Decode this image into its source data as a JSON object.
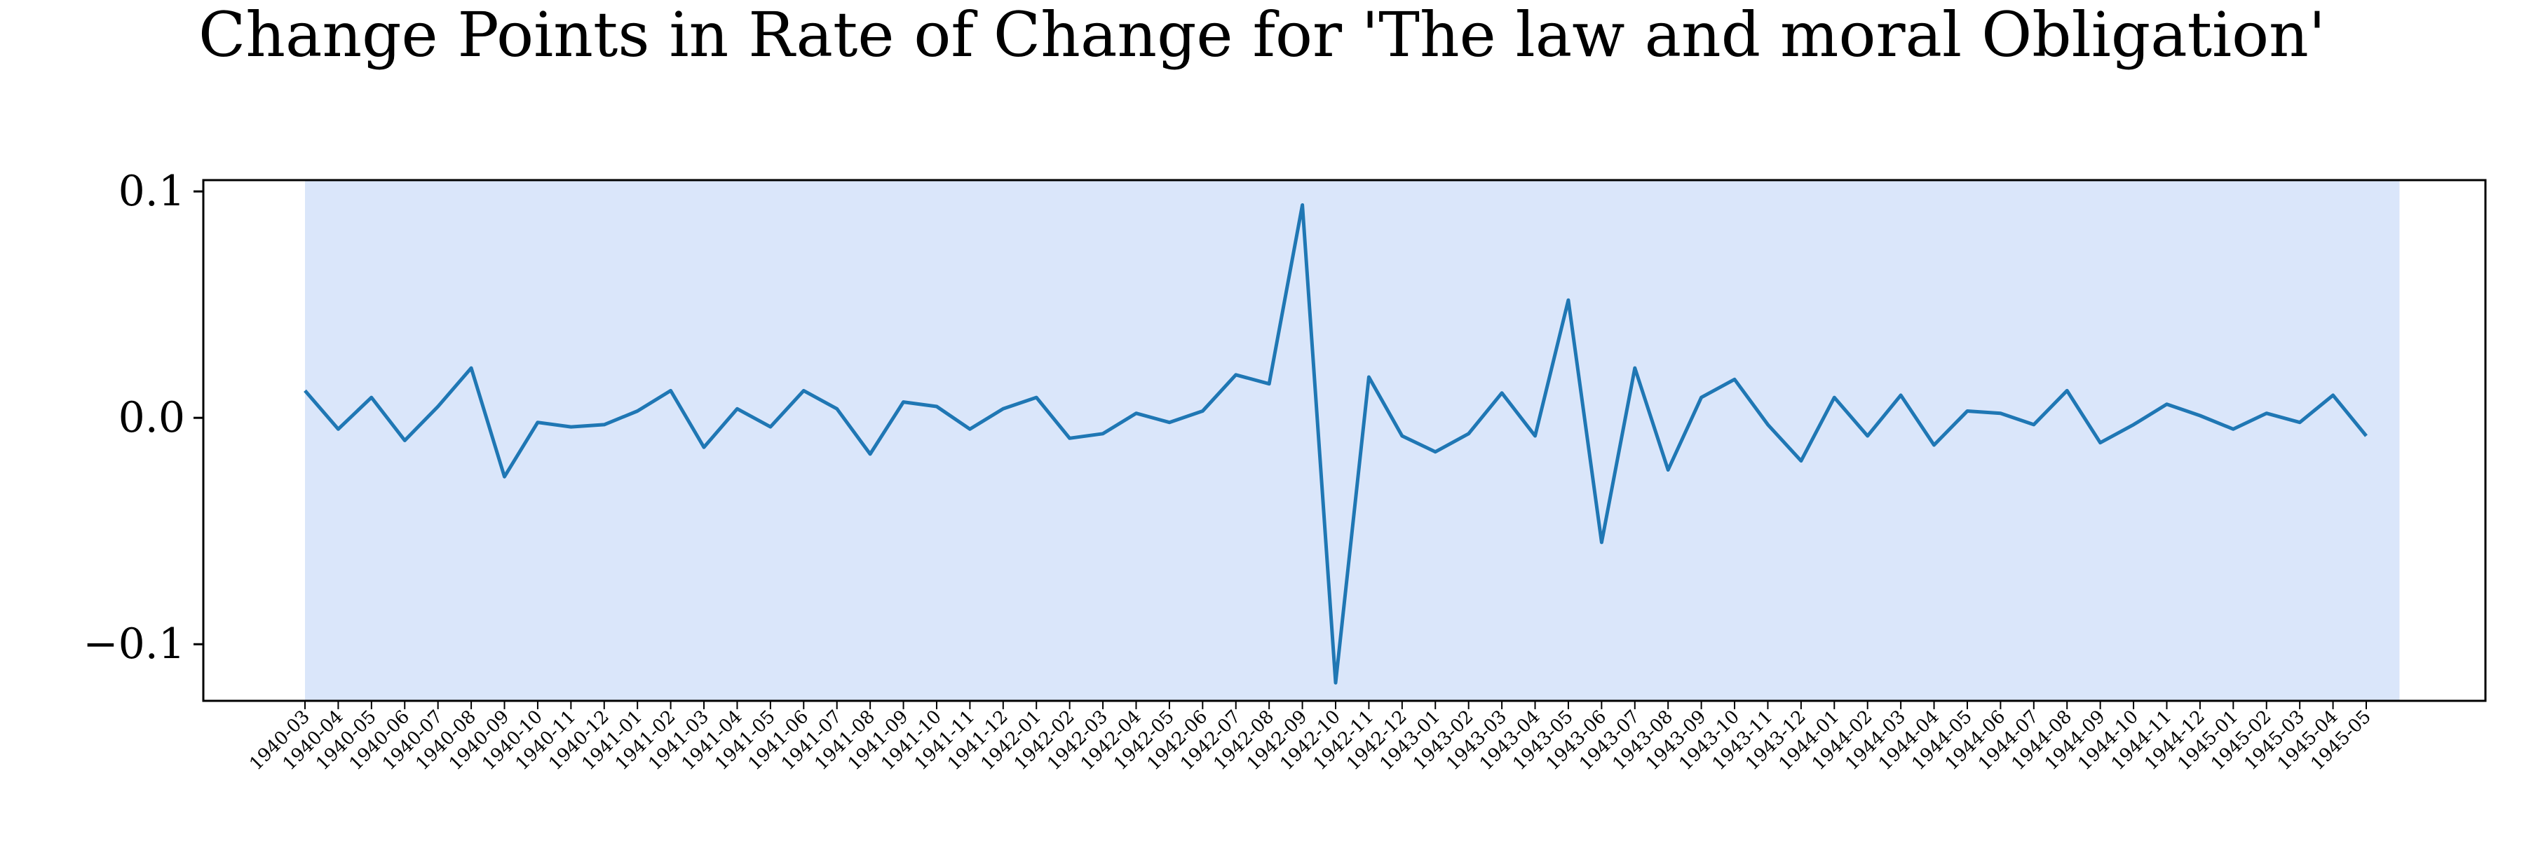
{
  "chart_data": {
    "type": "line",
    "title": "Change Points in Rate of Change for 'The law and moral Obligation'",
    "xlabel": "",
    "ylabel": "",
    "ylim": [
      -0.125,
      0.105
    ],
    "yticks": [
      0.1,
      0.0,
      -0.1
    ],
    "ytick_labels": [
      "0.1",
      "0.0",
      "−0.1"
    ],
    "grid": false,
    "legend": "none",
    "line_color": "#1f77b4",
    "shaded_region_color": "#dae6fa",
    "shaded_region": {
      "from": "1940-03",
      "to": "1945-05"
    },
    "x": [
      "1940-03",
      "1940-04",
      "1940-05",
      "1940-06",
      "1940-07",
      "1940-08",
      "1940-09",
      "1940-10",
      "1940-11",
      "1940-12",
      "1941-01",
      "1941-02",
      "1941-03",
      "1941-04",
      "1941-05",
      "1941-06",
      "1941-07",
      "1941-08",
      "1941-09",
      "1941-10",
      "1941-11",
      "1941-12",
      "1942-01",
      "1942-02",
      "1942-03",
      "1942-04",
      "1942-05",
      "1942-06",
      "1942-07",
      "1942-08",
      "1942-09",
      "1942-10",
      "1942-11",
      "1942-12",
      "1943-01",
      "1943-02",
      "1943-03",
      "1943-04",
      "1943-05",
      "1943-06",
      "1943-07",
      "1943-08",
      "1943-09",
      "1943-10",
      "1943-11",
      "1943-12",
      "1944-01",
      "1944-02",
      "1944-03",
      "1944-04",
      "1944-05",
      "1944-06",
      "1944-07",
      "1944-08",
      "1944-09",
      "1944-10",
      "1944-11",
      "1944-12",
      "1945-01",
      "1945-02",
      "1945-03",
      "1945-04",
      "1945-05"
    ],
    "series": [
      {
        "values": [
          0.012,
          -0.005,
          0.009,
          -0.01,
          0.005,
          0.022,
          -0.026,
          -0.002,
          -0.004,
          -0.003,
          0.003,
          0.012,
          -0.013,
          0.004,
          -0.004,
          0.012,
          0.004,
          -0.016,
          0.007,
          0.005,
          -0.005,
          0.004,
          0.009,
          -0.009,
          -0.007,
          0.002,
          -0.002,
          0.003,
          0.019,
          0.015,
          0.094,
          -0.117,
          0.018,
          -0.008,
          -0.015,
          -0.007,
          0.011,
          -0.008,
          0.052,
          -0.055,
          0.022,
          -0.023,
          0.009,
          0.017,
          -0.003,
          -0.019,
          0.009,
          -0.008,
          0.01,
          -0.012,
          0.003,
          0.002,
          -0.003,
          0.012,
          -0.011,
          -0.003,
          0.006,
          0.001,
          -0.005,
          0.002,
          -0.002,
          0.01,
          -0.008
        ]
      }
    ]
  }
}
